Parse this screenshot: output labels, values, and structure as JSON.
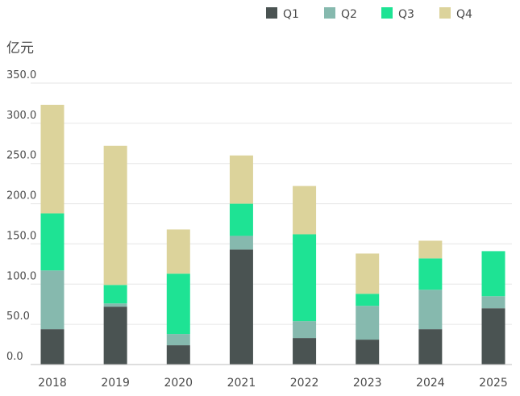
{
  "chart_data": {
    "type": "bar",
    "stacked": true,
    "ylabel": "亿元",
    "ylim": [
      0,
      350
    ],
    "yticks": [
      0,
      50,
      100,
      150,
      200,
      250,
      300,
      350
    ],
    "ytick_labels": [
      "0.0",
      "50.0",
      "100.0",
      "150.0",
      "200.0",
      "250.0",
      "300.0",
      "350.0"
    ],
    "grid": true,
    "legend_position": "top-right",
    "categories": [
      "2018",
      "2019",
      "2020",
      "2021",
      "2022",
      "2023",
      "2024",
      "2025"
    ],
    "series": [
      {
        "name": "Q1",
        "color": "#4a5352",
        "values": [
          44,
          72,
          24,
          143,
          33,
          31,
          44,
          70
        ]
      },
      {
        "name": "Q2",
        "color": "#86b9ae",
        "values": [
          73,
          4,
          14,
          17,
          21,
          42,
          49,
          15
        ]
      },
      {
        "name": "Q3",
        "color": "#1ee394",
        "values": [
          71,
          23,
          75,
          40,
          108,
          15,
          39,
          56
        ]
      },
      {
        "name": "Q4",
        "color": "#dcd39b",
        "values": [
          135,
          173,
          55,
          60,
          60,
          50,
          22,
          0
        ]
      }
    ]
  }
}
